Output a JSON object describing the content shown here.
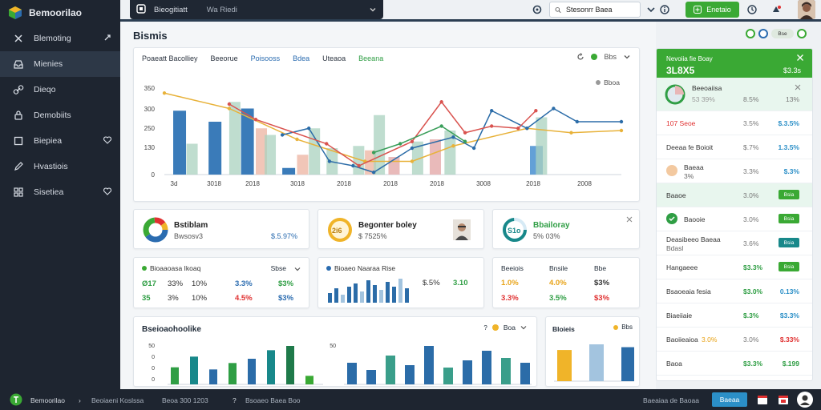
{
  "brand": {
    "name": "Bemoorilao"
  },
  "sidebar": {
    "items": [
      {
        "label": "Blemoting",
        "icon": "x-icon",
        "trail": "pin-icon"
      },
      {
        "label": "Mienies",
        "icon": "inbox-icon",
        "active": true
      },
      {
        "label": "Dieqo",
        "icon": "link-icon"
      },
      {
        "label": "Demobiits",
        "icon": "lock-icon"
      },
      {
        "label": "Biepiea",
        "icon": "square-icon",
        "trail": "heart-icon"
      },
      {
        "label": "Hvastiois",
        "icon": "pen-icon"
      },
      {
        "label": "Sisetiea",
        "icon": "grid-icon",
        "trail": "heart-icon"
      }
    ]
  },
  "topbar": {
    "app_label": "Bieogitiatt",
    "mode_label": "Wa Riedi",
    "search_value": "Stesonrr Baea",
    "green_button": "Enetaio"
  },
  "main": {
    "title": "Bismis",
    "chart_tabs": [
      "Poaeatt Bacolliey",
      "Beeorue",
      "Poisooss",
      "Bdea",
      "Uteaoa",
      "Beeana"
    ],
    "chart_ctrl_label": "Bbs",
    "legend_note": "Bboa"
  },
  "chart_data": {
    "type": "bar",
    "categories": [
      "3d",
      "3018",
      "2018",
      "3018",
      "2018",
      "2018",
      "2018",
      "3008",
      "2018",
      "2008"
    ],
    "x_tick_labels": [
      "3d",
      "3018",
      "2018",
      "3018",
      "2018",
      "2018",
      "2018",
      "3008",
      "2018",
      "2008"
    ],
    "y_tick_labels": [
      "0",
      "130",
      "250",
      "300",
      "350"
    ],
    "ylim": [
      0,
      400
    ],
    "colors": [
      "#2f74b5",
      "#a9d1bf",
      "#f0c3b4",
      "#5b9bd5",
      "#e8b6b6"
    ],
    "bars": [
      {
        "series": 0,
        "x": 0.3,
        "value": 290
      },
      {
        "series": 1,
        "x": 0.75,
        "value": 140
      },
      {
        "series": 0,
        "x": 1.5,
        "value": 240
      },
      {
        "series": 1,
        "x": 2.2,
        "value": 330
      },
      {
        "series": 0,
        "x": 2.6,
        "value": 300
      },
      {
        "series": 2,
        "x": 3.1,
        "value": 210
      },
      {
        "series": 1,
        "x": 3.4,
        "value": 180
      },
      {
        "series": 0,
        "x": 4.0,
        "value": 30
      },
      {
        "series": 2,
        "x": 4.5,
        "value": 90
      },
      {
        "series": 1,
        "x": 4.9,
        "value": 210
      },
      {
        "series": 1,
        "x": 5.5,
        "value": 120
      },
      {
        "series": 1,
        "x": 6.4,
        "value": 130
      },
      {
        "series": 2,
        "x": 6.8,
        "value": 110
      },
      {
        "series": 1,
        "x": 7.1,
        "value": 270
      },
      {
        "series": 4,
        "x": 7.6,
        "value": 80
      },
      {
        "series": 1,
        "x": 8.4,
        "value": 150
      },
      {
        "series": 4,
        "x": 9.0,
        "value": 160
      },
      {
        "series": 1,
        "x": 9.5,
        "value": 200
      },
      {
        "series": 3,
        "x": 12.4,
        "value": 130
      },
      {
        "series": 1,
        "x": 12.6,
        "value": 260
      }
    ],
    "series": [
      {
        "color": "#e8b23a",
        "points": [
          [
            0,
            370
          ],
          [
            2.2,
            300
          ],
          [
            4.5,
            160
          ],
          [
            6.8,
            60
          ],
          [
            8.4,
            60
          ],
          [
            9.8,
            130
          ],
          [
            12.3,
            210
          ],
          [
            13.8,
            190
          ],
          [
            15.5,
            200
          ]
        ]
      },
      {
        "color": "#2b6ca8",
        "points": [
          [
            4.0,
            180
          ],
          [
            4.9,
            210
          ],
          [
            5.6,
            60
          ],
          [
            6.4,
            40
          ],
          [
            7.1,
            10
          ],
          [
            8.4,
            120
          ],
          [
            9.8,
            170
          ],
          [
            10.5,
            120
          ],
          [
            11.1,
            290
          ],
          [
            12.3,
            210
          ],
          [
            13.2,
            300
          ],
          [
            14.0,
            240
          ],
          [
            15.5,
            240
          ]
        ]
      },
      {
        "color": "#d9534f",
        "points": [
          [
            2.2,
            320
          ],
          [
            3.1,
            250
          ],
          [
            5.5,
            140
          ],
          [
            6.6,
            40
          ],
          [
            8.4,
            150
          ],
          [
            9.4,
            330
          ],
          [
            10.2,
            190
          ],
          [
            11.1,
            220
          ],
          [
            12.0,
            210
          ],
          [
            12.6,
            290
          ]
        ]
      },
      {
        "color": "#3a9e5a",
        "points": [
          [
            7.1,
            100
          ],
          [
            8.0,
            140
          ],
          [
            9.4,
            220
          ],
          [
            10.2,
            150
          ]
        ]
      }
    ]
  },
  "kpis": [
    {
      "title": "Bstiblam",
      "sub": "Bwsosv3",
      "right": "$.5.97%"
    },
    {
      "title": "Begonter boley",
      "sub": "$ 7525%",
      "badge": "2i6"
    },
    {
      "title": "Bbailoray",
      "sub": "5% 03%",
      "badge": "S1o"
    }
  ],
  "mini1": {
    "head": "Bioaaoasa Ikoaq",
    "right_head": "Sbse",
    "rows": [
      {
        "a": "Ø17",
        "b": "33%",
        "c": "10%",
        "d": "3.3%",
        "e": "$3%"
      },
      {
        "a": "35",
        "b": "3%",
        "c": "10%",
        "d": "4.5%",
        "e": "$3%"
      }
    ]
  },
  "mini2": {
    "head": "Bioaeo Naaraa Rise",
    "v1": "$.5%",
    "v2": "3.10",
    "bars": [
      30,
      45,
      25,
      50,
      60,
      35,
      70,
      55,
      40,
      65,
      50,
      75,
      45
    ]
  },
  "mini3": {
    "heads": [
      "Beeiois",
      "Bnsile",
      "Bbe"
    ],
    "rows": [
      [
        "1.0%",
        "4.0%",
        "$3%"
      ],
      [
        "3.3%",
        "3.5%",
        "$3%"
      ]
    ]
  },
  "bottom1": {
    "title": "Bseioaohoolike",
    "ctrl": "Boa",
    "y_ticks": [
      "50",
      "0",
      "0",
      "0"
    ],
    "bars": [
      40,
      65,
      35,
      50,
      60,
      80,
      90,
      20
    ]
  },
  "bottom2": {
    "y_ticks": [
      "50"
    ],
    "bars": [
      45,
      30,
      60,
      40,
      80,
      35,
      50,
      70,
      55,
      45
    ]
  },
  "bottom3": {
    "title": "Bloieis",
    "ctrl": "Bbs",
    "bars": [
      55,
      65,
      60
    ]
  },
  "rpanel": {
    "head_label": "Nevoiia fie Boay",
    "head_value": "3L8X5",
    "head_right": "$3.3s",
    "rows": [
      {
        "name": "Beeoaiisa",
        "mid": "53 39%",
        "a": "8.5%",
        "r": "13%",
        "color": "#777",
        "kind": "donut"
      },
      {
        "name": "107 Seoe",
        "mid": "3.5%",
        "r": "$.3.5%",
        "color": "#2b8fc7"
      },
      {
        "name": "Deeaa fe Boioit",
        "mid": "$.7%",
        "r": "1.3.5%",
        "color": "#2b8fc7"
      },
      {
        "name": "Baeaa",
        "mid": "3.3%",
        "r": "$.3%",
        "color": "#2b8fc7",
        "sub": "3%"
      },
      {
        "name": "Baaoe",
        "mid": "3.0%",
        "pill": "Bsia",
        "hl": true
      },
      {
        "name": "Baooie",
        "mid": "3.0%",
        "pill": "Bsia"
      },
      {
        "name": "Deasibeeo Baeaa",
        "sub": "Bdasl",
        "mid": "3.6%",
        "pill": "Bsia",
        "teal": true
      },
      {
        "name": "Hangaeee",
        "mid": "$3.3%",
        "pill": "Bsia",
        "midGreen": true
      },
      {
        "name": "Bsaoeaia fesia",
        "mid": "$3.0%",
        "r": "0.13%",
        "color": "#2b8fc7",
        "midGreen": true
      },
      {
        "name": "Biaeiiaie",
        "mid": "$.3%",
        "r": "$3.3%",
        "color": "#2b8fc7",
        "midGreen": true
      },
      {
        "name": "Baoiieaioa",
        "mid": "3.0%",
        "r": "$.33%",
        "color": "#e03131",
        "nameExtra": "3.0%"
      },
      {
        "name": "Baoa",
        "mid": "$3.3%",
        "r": "$.199",
        "color": "#2f9e44",
        "midGreen": true
      }
    ],
    "top_pill": "Bse"
  },
  "bottombar": {
    "name": "Bemoorilao",
    "a": "Beoiaeni Koslssa",
    "b": "Beoa 300 1203",
    "c": "Bsoaeo Baea Boo",
    "d": "Baeaiaa de Baoaa",
    "btn": "Baeaa"
  }
}
